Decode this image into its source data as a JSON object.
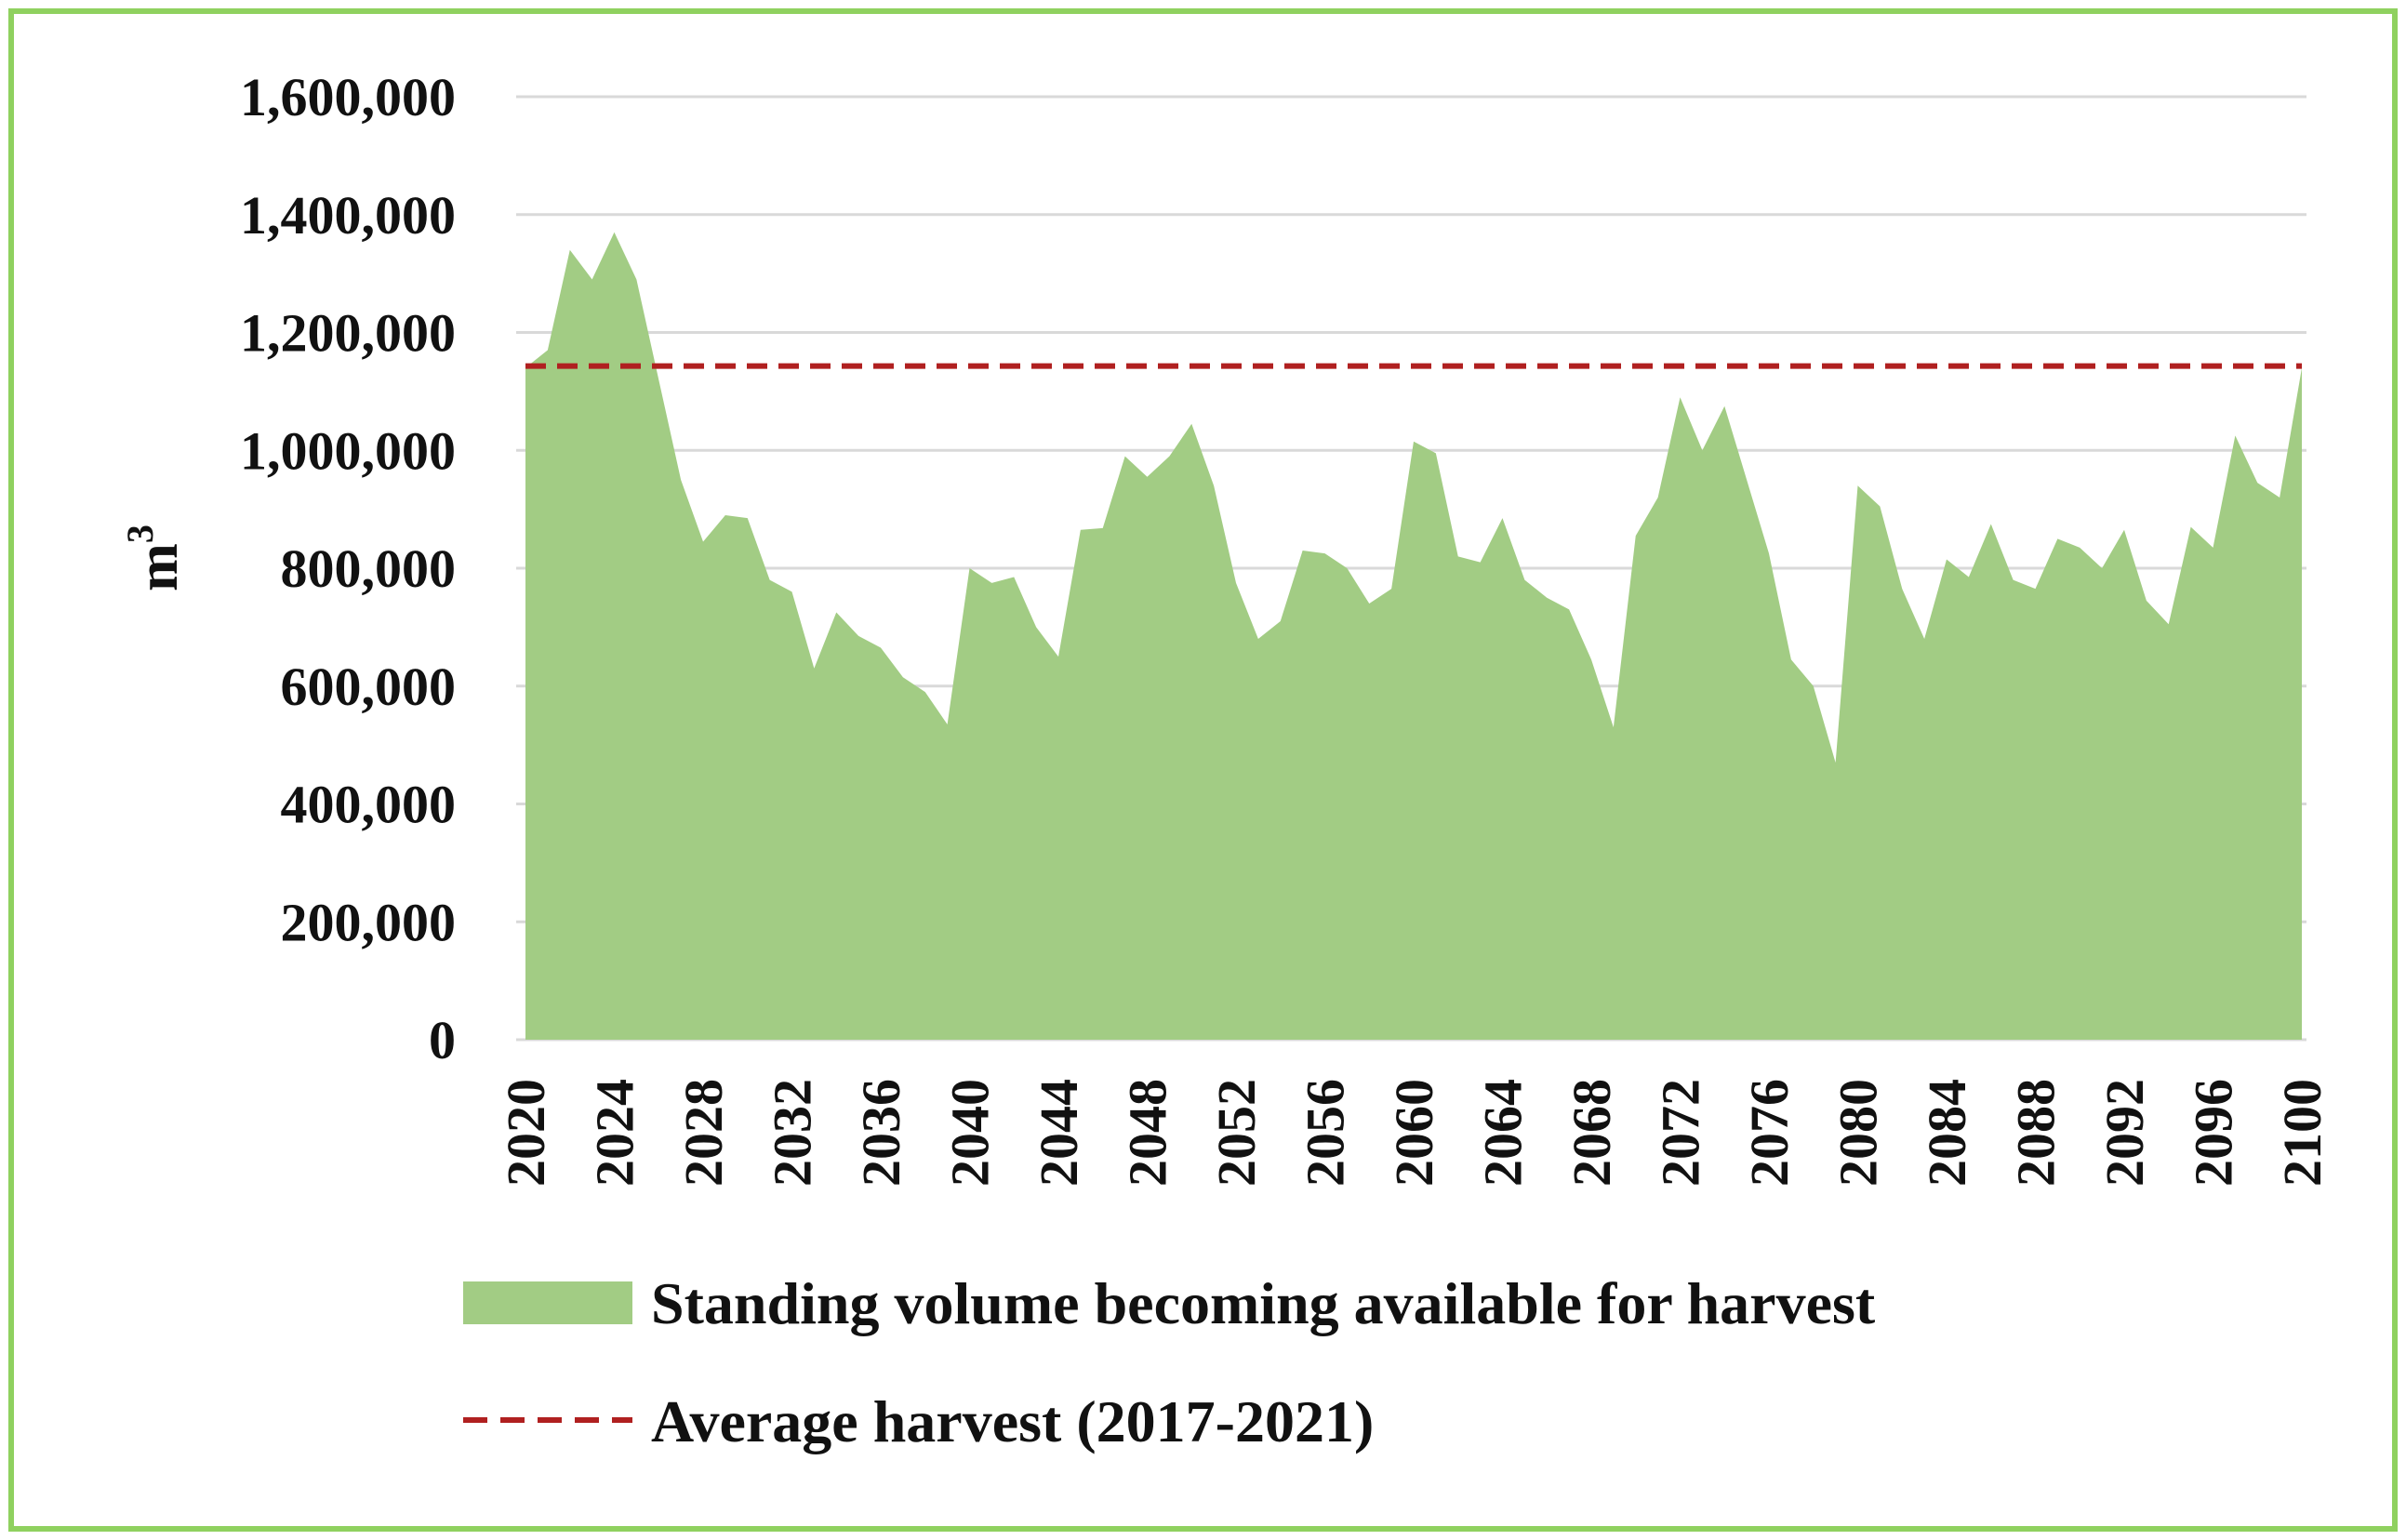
{
  "chart_data": {
    "type": "area",
    "title": "",
    "xlabel": "",
    "ylabel": "m",
    "ylabel_superscript": "3",
    "ylim": [
      0,
      1600000
    ],
    "yticks": [
      0,
      200000,
      400000,
      600000,
      800000,
      1000000,
      1200000,
      1400000,
      1600000
    ],
    "ytick_labels": [
      "0",
      "200,000",
      "400,000",
      "600,000",
      "800,000",
      "1,000,000",
      "1,200,000",
      "1,400,000",
      "1,600,000"
    ],
    "xlim": [
      2020,
      2100
    ],
    "xtick_labels": [
      "2020",
      "2024",
      "2028",
      "2032",
      "2036",
      "2040",
      "2044",
      "2048",
      "2052",
      "2056",
      "2060",
      "2064",
      "2068",
      "2072",
      "2076",
      "2080",
      "2084",
      "2088",
      "2092",
      "2096",
      "2100"
    ],
    "grid": true,
    "legend_position": "bottom",
    "colors": {
      "area": "#a2cc84",
      "average_line": "#b02020",
      "frame": "#8fd15f",
      "grid": "#d9d9d9"
    },
    "series": [
      {
        "name": "Standing volume becoming available for harvest",
        "kind": "area",
        "x": [
          2020,
          2021,
          2022,
          2023,
          2024,
          2025,
          2026,
          2027,
          2028,
          2029,
          2030,
          2031,
          2032,
          2033,
          2034,
          2035,
          2036,
          2037,
          2038,
          2039,
          2040,
          2041,
          2042,
          2043,
          2044,
          2045,
          2046,
          2047,
          2048,
          2049,
          2050,
          2051,
          2052,
          2053,
          2054,
          2055,
          2056,
          2057,
          2058,
          2059,
          2060,
          2061,
          2062,
          2063,
          2064,
          2065,
          2066,
          2067,
          2068,
          2069,
          2070,
          2071,
          2072,
          2073,
          2074,
          2075,
          2076,
          2077,
          2078,
          2079,
          2080,
          2081,
          2082,
          2083,
          2084,
          2085,
          2086,
          2087,
          2088,
          2089,
          2090,
          2091,
          2092,
          2093,
          2094,
          2095,
          2096,
          2097,
          2098,
          2099,
          2100
        ],
        "values": [
          1140000,
          1170000,
          1340000,
          1290000,
          1370000,
          1290000,
          1120000,
          950000,
          845000,
          890000,
          885000,
          780000,
          760000,
          630000,
          725000,
          685000,
          665000,
          615000,
          590000,
          535000,
          800000,
          775000,
          785000,
          700000,
          650000,
          865000,
          868000,
          990000,
          955000,
          990000,
          1045000,
          940000,
          775000,
          680000,
          710000,
          830000,
          825000,
          800000,
          740000,
          765000,
          1015000,
          995000,
          820000,
          810000,
          885000,
          780000,
          750000,
          730000,
          645000,
          530000,
          855000,
          920000,
          1090000,
          1000000,
          1075000,
          950000,
          825000,
          645000,
          600000,
          470000,
          940000,
          905000,
          765000,
          680000,
          815000,
          785000,
          875000,
          780000,
          765000,
          850000,
          835000,
          800000,
          865000,
          745000,
          705000,
          870000,
          835000,
          1025000,
          945000,
          920000,
          1140000
        ]
      },
      {
        "name": "Average harvest (2017-2021)",
        "kind": "dashed-line",
        "value": 1143000
      }
    ]
  }
}
